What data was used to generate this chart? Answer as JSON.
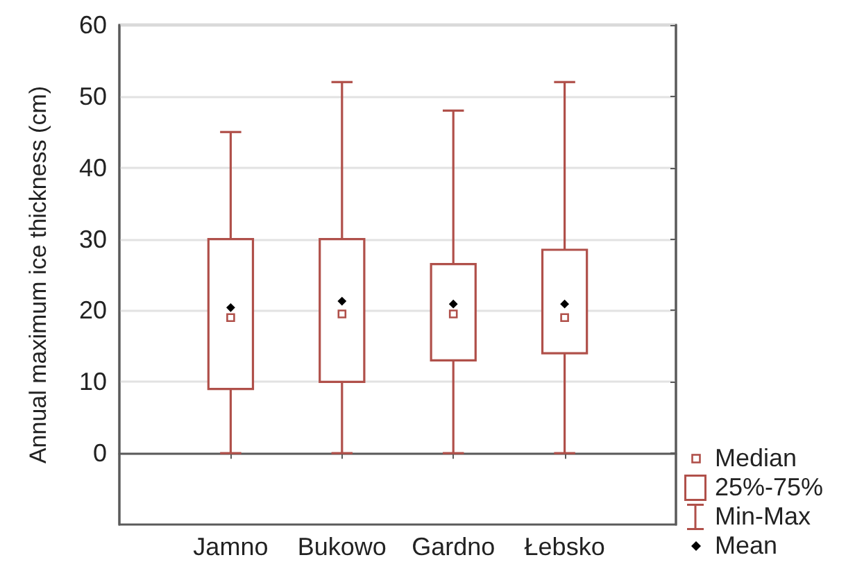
{
  "chart_data": {
    "type": "box",
    "ylabel": "Annual maximum ice thickness (cm)",
    "categories": [
      "Jamno",
      "Bukowo",
      "Gardno",
      "Łebsko"
    ],
    "boxes": [
      {
        "low": 0,
        "q1": 9,
        "median": 19,
        "q3": 30,
        "high": 45,
        "mean": 20.4
      },
      {
        "low": 0,
        "q1": 10,
        "median": 19.5,
        "q3": 30,
        "high": 52,
        "mean": 21.3
      },
      {
        "low": 0,
        "q1": 13,
        "median": 19.5,
        "q3": 26.5,
        "high": 48,
        "mean": 20.9
      },
      {
        "low": 0,
        "q1": 14,
        "median": 19,
        "q3": 28.5,
        "high": 52,
        "mean": 20.9
      }
    ],
    "color": "#b0504a",
    "ylim": [
      -10,
      60
    ],
    "yticks": [
      0,
      10,
      20,
      30,
      40,
      50,
      60
    ],
    "grid": "y",
    "annotations": [
      "Median",
      "25%-75%",
      "Min-Max",
      "Mean"
    ]
  }
}
